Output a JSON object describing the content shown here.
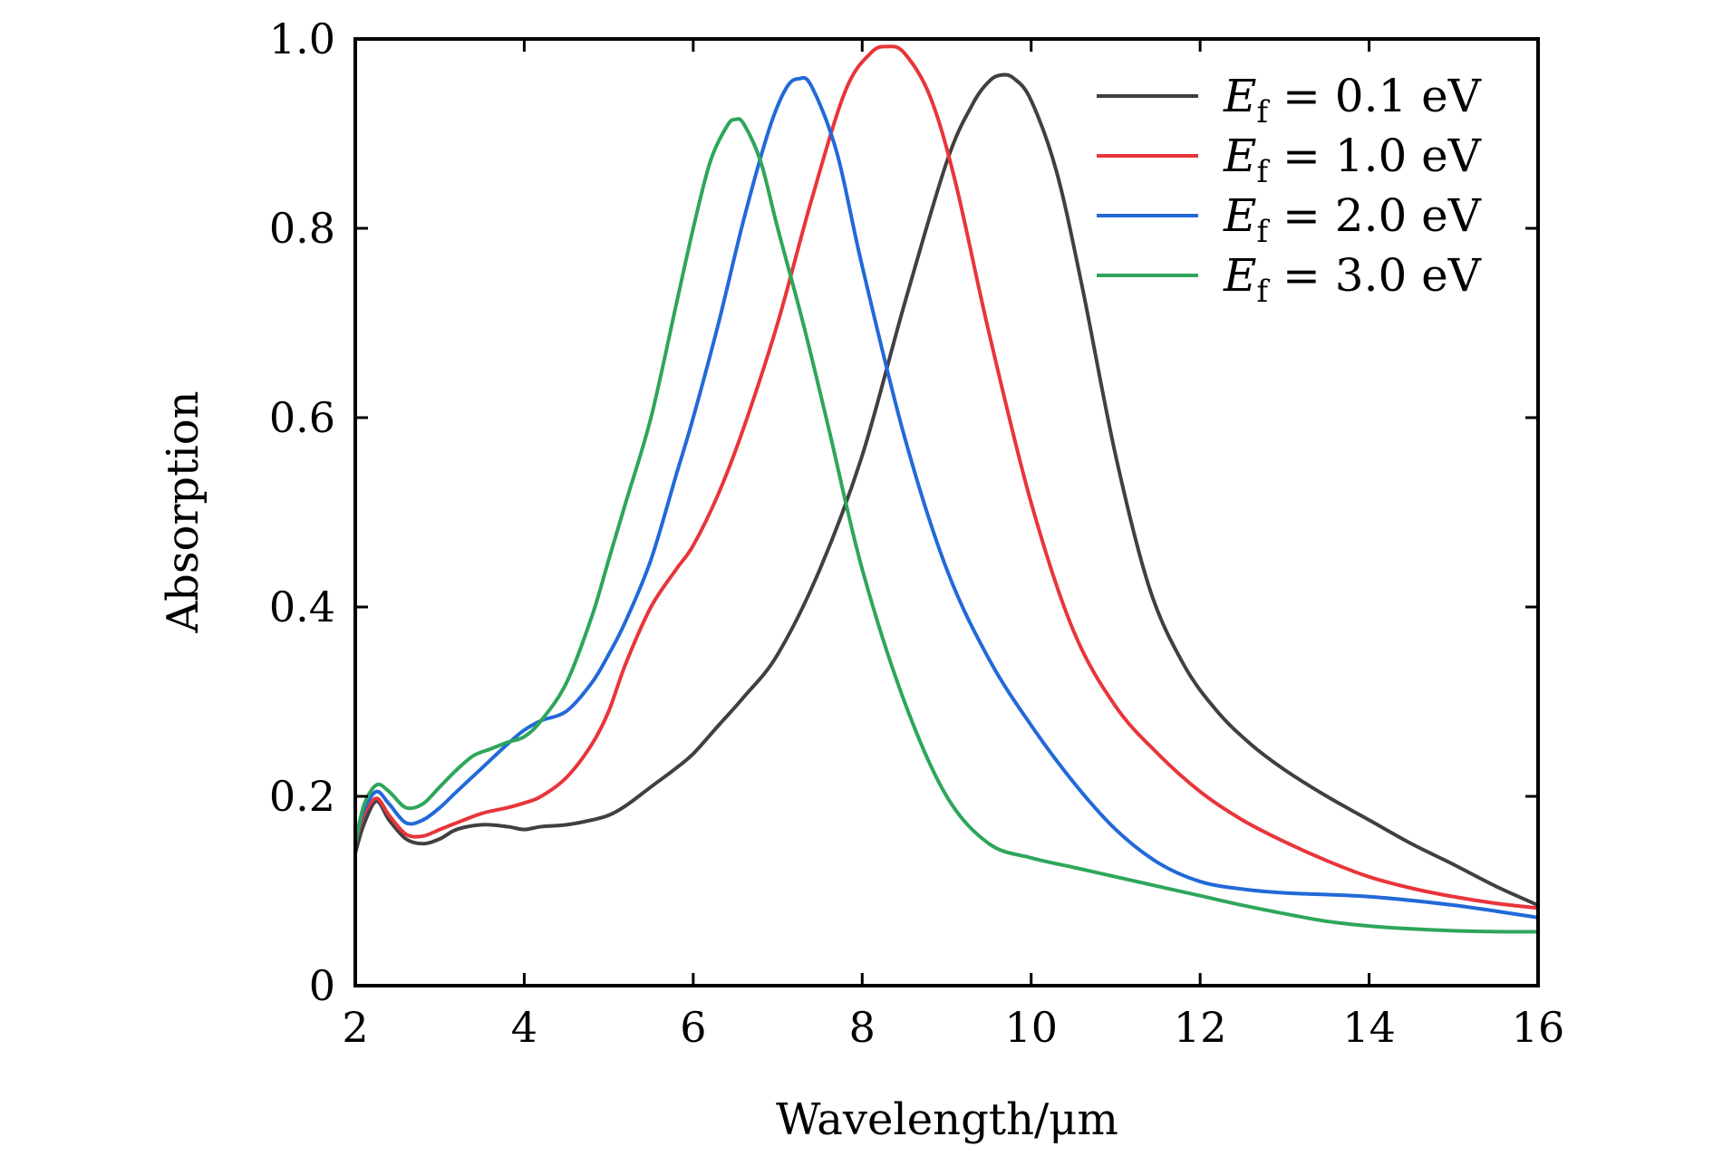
{
  "chart_data": {
    "type": "line",
    "title": "",
    "xlabel": "Wavelength/μm",
    "ylabel": "Absorption",
    "xlim": [
      2,
      16
    ],
    "ylim": [
      0,
      1.0
    ],
    "xticks": [
      2,
      4,
      6,
      8,
      10,
      12,
      14,
      16
    ],
    "xtick_labels": [
      "2",
      "4",
      "6",
      "8",
      "10",
      "12",
      "14",
      "16"
    ],
    "yticks": [
      0,
      0.2,
      0.4,
      0.6,
      0.8,
      1.0
    ],
    "ytick_labels": [
      "0",
      "0.2",
      "0.4",
      "0.6",
      "0.8",
      "1.0"
    ],
    "grid": false,
    "legend_position": "top-right",
    "series": [
      {
        "name": "E_f = 0.1 eV",
        "legend_var": "E",
        "legend_sub": "f",
        "legend_rest": " = 0.1 eV",
        "color": "#404040",
        "x": [
          2.0,
          2.1,
          2.25,
          2.4,
          2.6,
          2.8,
          3.0,
          3.2,
          3.5,
          3.8,
          4.0,
          4.2,
          4.5,
          4.8,
          5.0,
          5.2,
          5.5,
          5.8,
          6.0,
          6.3,
          6.6,
          7.0,
          7.5,
          8.0,
          8.5,
          9.0,
          9.3,
          9.5,
          9.65,
          9.8,
          10.0,
          10.3,
          10.6,
          11.0,
          11.4,
          11.8,
          12.2,
          12.6,
          13.0,
          13.5,
          14.0,
          14.5,
          15.0,
          15.5,
          16.0
        ],
        "y": [
          0.14,
          0.17,
          0.195,
          0.175,
          0.155,
          0.15,
          0.155,
          0.165,
          0.17,
          0.168,
          0.165,
          0.168,
          0.17,
          0.175,
          0.18,
          0.19,
          0.21,
          0.23,
          0.245,
          0.275,
          0.305,
          0.35,
          0.44,
          0.56,
          0.72,
          0.87,
          0.93,
          0.955,
          0.962,
          0.958,
          0.935,
          0.86,
          0.74,
          0.56,
          0.42,
          0.34,
          0.29,
          0.255,
          0.228,
          0.2,
          0.175,
          0.15,
          0.128,
          0.105,
          0.085
        ]
      },
      {
        "name": "E_f = 1.0 eV",
        "legend_var": "E",
        "legend_sub": "f",
        "legend_rest": " = 1.0 eV",
        "color": "#e8353a",
        "x": [
          2.0,
          2.1,
          2.25,
          2.4,
          2.6,
          2.8,
          3.0,
          3.2,
          3.5,
          3.8,
          4.0,
          4.2,
          4.5,
          4.8,
          5.0,
          5.2,
          5.5,
          5.8,
          6.0,
          6.3,
          6.6,
          7.0,
          7.4,
          7.8,
          8.1,
          8.3,
          8.5,
          8.8,
          9.1,
          9.5,
          10.0,
          10.5,
          11.0,
          11.5,
          12.0,
          12.5,
          13.0,
          13.5,
          14.0,
          14.5,
          15.0,
          15.5,
          16.0
        ],
        "y": [
          0.15,
          0.18,
          0.198,
          0.18,
          0.16,
          0.158,
          0.165,
          0.172,
          0.182,
          0.188,
          0.193,
          0.2,
          0.22,
          0.255,
          0.29,
          0.34,
          0.4,
          0.44,
          0.465,
          0.52,
          0.59,
          0.7,
          0.83,
          0.945,
          0.985,
          0.992,
          0.985,
          0.94,
          0.85,
          0.69,
          0.51,
          0.375,
          0.295,
          0.245,
          0.205,
          0.175,
          0.152,
          0.132,
          0.115,
          0.103,
          0.094,
          0.087,
          0.082
        ]
      },
      {
        "name": "E_f = 2.0 eV",
        "legend_var": "E",
        "legend_sub": "f",
        "legend_rest": " = 2.0 eV",
        "color": "#2269d8",
        "x": [
          2.0,
          2.1,
          2.25,
          2.4,
          2.6,
          2.8,
          3.0,
          3.2,
          3.5,
          3.8,
          4.0,
          4.2,
          4.5,
          4.8,
          5.0,
          5.2,
          5.5,
          5.8,
          6.0,
          6.3,
          6.6,
          6.9,
          7.1,
          7.25,
          7.4,
          7.7,
          8.0,
          8.5,
          9.0,
          9.5,
          10.0,
          10.5,
          11.0,
          11.5,
          12.0,
          12.5,
          13.0,
          14.0,
          15.0,
          16.0
        ],
        "y": [
          0.15,
          0.185,
          0.205,
          0.192,
          0.172,
          0.175,
          0.188,
          0.205,
          0.23,
          0.255,
          0.27,
          0.28,
          0.29,
          0.32,
          0.35,
          0.385,
          0.45,
          0.54,
          0.6,
          0.7,
          0.81,
          0.905,
          0.948,
          0.958,
          0.95,
          0.88,
          0.76,
          0.58,
          0.44,
          0.345,
          0.275,
          0.215,
          0.165,
          0.13,
          0.11,
          0.102,
          0.098,
          0.094,
          0.085,
          0.072
        ]
      },
      {
        "name": "E_f = 3.0 eV",
        "legend_var": "E",
        "legend_sub": "f",
        "legend_rest": " = 3.0 eV",
        "color": "#2ea65a",
        "x": [
          2.0,
          2.1,
          2.25,
          2.4,
          2.6,
          2.8,
          3.0,
          3.2,
          3.4,
          3.6,
          3.8,
          4.0,
          4.2,
          4.5,
          4.8,
          5.0,
          5.2,
          5.5,
          5.8,
          6.0,
          6.2,
          6.4,
          6.5,
          6.6,
          6.8,
          7.0,
          7.3,
          7.6,
          8.0,
          8.5,
          9.0,
          9.5,
          10.0,
          10.5,
          11.0,
          11.5,
          12.0,
          12.5,
          13.0,
          13.5,
          14.0,
          14.5,
          15.0,
          15.5,
          16.0
        ],
        "y": [
          0.15,
          0.19,
          0.212,
          0.205,
          0.188,
          0.192,
          0.21,
          0.228,
          0.243,
          0.25,
          0.257,
          0.263,
          0.28,
          0.32,
          0.39,
          0.45,
          0.51,
          0.6,
          0.72,
          0.8,
          0.87,
          0.908,
          0.915,
          0.91,
          0.87,
          0.8,
          0.7,
          0.59,
          0.44,
          0.3,
          0.2,
          0.15,
          0.135,
          0.125,
          0.115,
          0.105,
          0.095,
          0.085,
          0.076,
          0.068,
          0.063,
          0.06,
          0.058,
          0.057,
          0.057
        ]
      }
    ]
  }
}
